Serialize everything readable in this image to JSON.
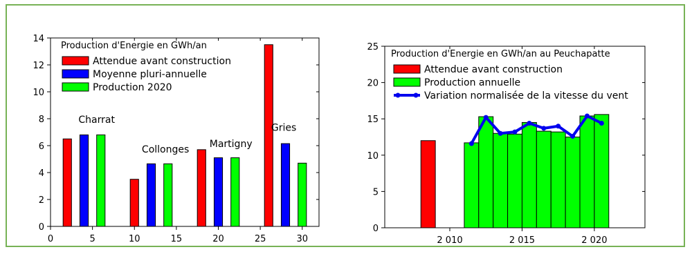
{
  "chart_data": [
    {
      "type": "bar",
      "title": "Production d'Energie en GWh/an",
      "xlim": [
        0,
        32
      ],
      "ylim": [
        0,
        14
      ],
      "xticks": [
        0,
        5,
        10,
        15,
        20,
        25,
        30
      ],
      "yticks": [
        0,
        2,
        4,
        6,
        8,
        10,
        12,
        14
      ],
      "bar_width": 1,
      "legend_position": "top-left",
      "series": [
        {
          "name": "Attendue avant construction",
          "color": "#ff0000",
          "x": [
            2,
            10,
            18,
            26
          ],
          "values": [
            6.5,
            3.5,
            5.7,
            13.5
          ]
        },
        {
          "name": "Moyenne pluri-annuelle",
          "color": "#0000ff",
          "x": [
            4,
            12,
            20,
            28
          ],
          "values": [
            6.8,
            4.65,
            5.1,
            6.15
          ]
        },
        {
          "name": "Production 2020",
          "color": "#00ff00",
          "x": [
            6,
            14,
            22,
            30
          ],
          "values": [
            6.8,
            4.65,
            5.1,
            4.7
          ]
        }
      ],
      "annotations": [
        {
          "text": "Charrat",
          "x": 5.5,
          "y": 7.7
        },
        {
          "text": "Collonges",
          "x": 13.7,
          "y": 5.5
        },
        {
          "text": "Martigny",
          "x": 21.5,
          "y": 5.9
        },
        {
          "text": "Gries",
          "x": 27.8,
          "y": 7.1
        }
      ]
    },
    {
      "type": "bar",
      "title": "Production d'Energie en GWh/an au Peuchapatte",
      "xlim": [
        2005.5,
        2023.5
      ],
      "ylim": [
        0,
        25
      ],
      "xticks": [
        2010,
        2015,
        2020
      ],
      "xtick_labels": [
        "2 010",
        "2 015",
        "2 020"
      ],
      "yticks": [
        0,
        5,
        10,
        15,
        20,
        25
      ],
      "bar_width": 1,
      "legend_position": "top-left",
      "series": [
        {
          "name": "Attendue avant construction",
          "type": "bar",
          "color": "#ff0000",
          "x": [
            2008.5
          ],
          "values": [
            12
          ]
        },
        {
          "name": "Production annuelle",
          "type": "bar",
          "color": "#00ff00",
          "x": [
            2011.5,
            2012.5,
            2013.5,
            2014.5,
            2015.5,
            2016.5,
            2017.5,
            2018.5,
            2019.5,
            2020.5
          ],
          "values": [
            11.7,
            15.3,
            13.0,
            12.9,
            14.5,
            13.3,
            13.2,
            12.5,
            15.4,
            15.6
          ]
        },
        {
          "name": "Variation normalisée de la vitesse du vent",
          "type": "line",
          "color": "#0000ee",
          "x": [
            2011.5,
            2012.5,
            2013.5,
            2014.5,
            2015.5,
            2016.5,
            2017.5,
            2018.5,
            2019.5,
            2020.5
          ],
          "values": [
            11.6,
            15.2,
            13.0,
            13.2,
            14.4,
            13.7,
            14.0,
            12.6,
            15.4,
            14.4
          ]
        }
      ]
    }
  ]
}
